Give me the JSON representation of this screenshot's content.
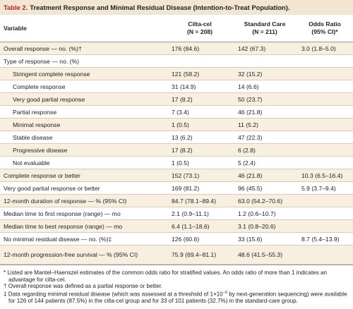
{
  "header": {
    "label": "Table 2.",
    "title": "Treatment Response and Minimal Residual Disease (Intention-to-Treat Population)."
  },
  "table": {
    "columns": [
      {
        "name": "Variable"
      },
      {
        "name": "Cilta-cel",
        "sub": "(N = 208)"
      },
      {
        "name": "Standard Care",
        "sub": "(N = 211)"
      },
      {
        "name": "Odds Ratio",
        "sub": "(95% CI)*"
      }
    ],
    "rows": [
      {
        "label": "Overall response — no. (%)†",
        "cilta": "176 (84.6)",
        "standard": "142 (67.3)",
        "odds": "3.0 (1.8–5.0)"
      },
      {
        "label": "Type of response — no. (%)"
      },
      {
        "label": "Stringent complete response",
        "indent": true,
        "cilta": "121 (58.2)",
        "standard": "32 (15.2)"
      },
      {
        "label": "Complete response",
        "indent": true,
        "cilta": "31 (14.9)",
        "standard": "14 (6.6)"
      },
      {
        "label": "Very good partial response",
        "indent": true,
        "cilta": "17 (8.2)",
        "standard": "50 (23.7)"
      },
      {
        "label": "Partial response",
        "indent": true,
        "cilta": "7 (3.4)",
        "standard": "46 (21.8)"
      },
      {
        "label": "Minimal response",
        "indent": true,
        "cilta": "1 (0.5)",
        "standard": "11 (5.2)"
      },
      {
        "label": "Stable disease",
        "indent": true,
        "cilta": "13 (6.2)",
        "standard": "47 (22.3)"
      },
      {
        "label": "Progressive disease",
        "indent": true,
        "cilta": "17 (8.2)",
        "standard": "6 (2.8)"
      },
      {
        "label": "Not evaluable",
        "indent": true,
        "cilta": "1 (0.5)",
        "standard": "5 (2.4)"
      },
      {
        "label": "Complete response or better",
        "cilta": "152 (73.1)",
        "standard": "46 (21.8)",
        "odds": "10.3 (6.5–16.4)"
      },
      {
        "label": "Very good partial response or better",
        "cilta": "169 (81.2)",
        "standard": "96 (45.5)",
        "odds": "5.9 (3.7–9.4)"
      },
      {
        "label": "12-month duration of response — % (95% CI)",
        "cilta": "84.7 (78.1–89.4)",
        "standard": "63.0 (54.2–70.6)"
      },
      {
        "label": "Median time to first response (range) — mo",
        "cilta": "2.1 (0.9–11.1)",
        "standard": "1.2 (0.6–10.7)"
      },
      {
        "label": "Median time to best response (range) — mo",
        "cilta": "6.4 (1.1–18.6)",
        "standard": "3.1 (0.8–20.6)"
      },
      {
        "label": "No minimal residual disease — no. (%)‡",
        "cilta": "126 (60.6)",
        "standard": "33 (15.6)",
        "odds": "8.7 (5.4–13.9)"
      },
      {
        "label": "12-month progression-free survival — % (95% CI)",
        "cilta": "75.9 (69.4–81.1)",
        "standard": "48.6 (41.5–55.3)"
      }
    ]
  },
  "footnotes": [
    {
      "symbol": "*",
      "text": "Listed are Mantel–Haenszel estimates of the common odds ratio for stratified values. An odds ratio of more than 1 indicates an advantage for cilta-cel."
    },
    {
      "symbol": "†",
      "text": "Overall response was defined as a partial response or better."
    },
    {
      "symbol": "‡",
      "text": "Data regarding minimal residual disease (which was assessed at a threshold of 1×10",
      "sup": "−5",
      "text_after": " by next-generation sequencing) were available for 126 of 144 patients (87.5%) in the cilta-cel group and for 33 of 101 patients (32.7%) in the standard-care group."
    }
  ]
}
